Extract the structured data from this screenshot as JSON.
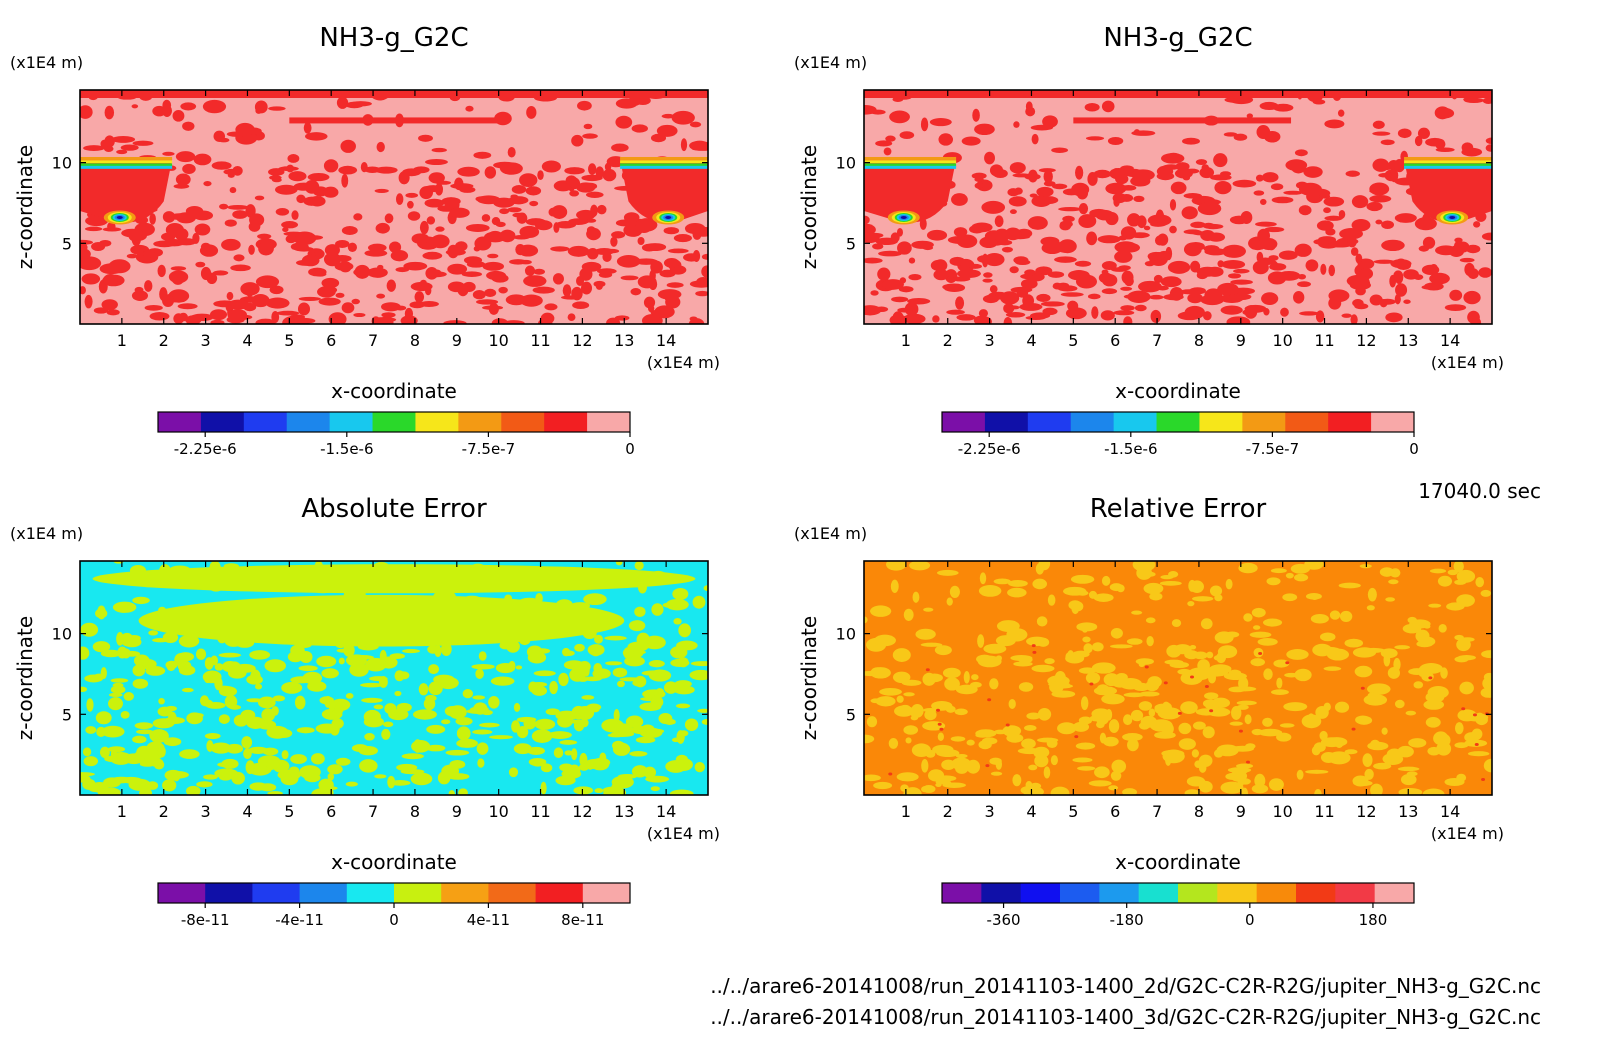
{
  "chart_data": [
    {
      "type": "heatmap",
      "title": "NH3-g_G2C",
      "xlabel": "x-coordinate",
      "ylabel": "z-coordinate",
      "xunit": "(x1E4 m)",
      "yunit": "(x1E4 m)",
      "xlim": [
        0,
        15
      ],
      "ylim": [
        0,
        14.5
      ],
      "xticks": [
        "1",
        "2",
        "3",
        "4",
        "5",
        "6",
        "7",
        "8",
        "9",
        "10",
        "11",
        "12",
        "13",
        "14"
      ],
      "yticks": [
        "5",
        "10"
      ],
      "colorbar": {
        "min": -2.5e-06,
        "max": 0,
        "colors": [
          "#7b0fa8",
          "#1010a8",
          "#1f3cf0",
          "#1c86ec",
          "#18c8ee",
          "#2ad82a",
          "#f6e61a",
          "#f39a14",
          "#f25a16",
          "#f21f22",
          "#f8a8a8"
        ],
        "tick_values": [
          -2.25e-06,
          -1.5e-06,
          -7.5e-07,
          0
        ],
        "tick_labels": [
          "-2.25e-6",
          "-1.5e-6",
          "-7.5e-7",
          "0"
        ]
      },
      "field": {
        "base": "#f8a8a8",
        "patch": "#f22a2a",
        "style": "nh3"
      }
    },
    {
      "type": "heatmap",
      "title": "NH3-g_G2C",
      "xlabel": "x-coordinate",
      "ylabel": "z-coordinate",
      "xunit": "(x1E4 m)",
      "yunit": "(x1E4 m)",
      "xlim": [
        0,
        15
      ],
      "ylim": [
        0,
        14.5
      ],
      "xticks": [
        "1",
        "2",
        "3",
        "4",
        "5",
        "6",
        "7",
        "8",
        "9",
        "10",
        "11",
        "12",
        "13",
        "14"
      ],
      "yticks": [
        "5",
        "10"
      ],
      "colorbar": {
        "min": -2.5e-06,
        "max": 0,
        "colors": [
          "#7b0fa8",
          "#1010a8",
          "#1f3cf0",
          "#1c86ec",
          "#18c8ee",
          "#2ad82a",
          "#f6e61a",
          "#f39a14",
          "#f25a16",
          "#f21f22",
          "#f8a8a8"
        ],
        "tick_values": [
          -2.25e-06,
          -1.5e-06,
          -7.5e-07,
          0
        ],
        "tick_labels": [
          "-2.25e-6",
          "-1.5e-6",
          "-7.5e-7",
          "0"
        ]
      },
      "field": {
        "base": "#f8a8a8",
        "patch": "#f22a2a",
        "style": "nh3"
      }
    },
    {
      "type": "heatmap",
      "title": "Absolute Error",
      "xlabel": "x-coordinate",
      "ylabel": "z-coordinate",
      "xunit": "(x1E4 m)",
      "yunit": "(x1E4 m)",
      "xlim": [
        0,
        15
      ],
      "ylim": [
        0,
        14.5
      ],
      "xticks": [
        "1",
        "2",
        "3",
        "4",
        "5",
        "6",
        "7",
        "8",
        "9",
        "10",
        "11",
        "12",
        "13",
        "14"
      ],
      "yticks": [
        "5",
        "10"
      ],
      "colorbar": {
        "min": -1e-10,
        "max": 1e-10,
        "colors": [
          "#7b0fa8",
          "#1010a8",
          "#1f3cf0",
          "#1c86ec",
          "#18e8f0",
          "#c8f010",
          "#f6a014",
          "#f26a18",
          "#f21f22",
          "#f8a8a8"
        ],
        "tick_values": [
          -8e-11,
          -4e-11,
          0,
          4e-11,
          8e-11
        ],
        "tick_labels": [
          "-8e-11",
          "-4e-11",
          "0",
          "4e-11",
          "8e-11"
        ]
      },
      "field": {
        "base": "#18e8f0",
        "patch": "#cbf20c",
        "style": "err"
      }
    },
    {
      "type": "heatmap",
      "title": "Relative Error",
      "xlabel": "x-coordinate",
      "ylabel": "z-coordinate",
      "xunit": "(x1E4 m)",
      "yunit": "(x1E4 m)",
      "xlim": [
        0,
        15
      ],
      "ylim": [
        0,
        14.5
      ],
      "xticks": [
        "1",
        "2",
        "3",
        "4",
        "5",
        "6",
        "7",
        "8",
        "9",
        "10",
        "11",
        "12",
        "13",
        "14"
      ],
      "yticks": [
        "5",
        "10"
      ],
      "colorbar": {
        "min": -450,
        "max": 240,
        "colors": [
          "#7b0fa8",
          "#1010a8",
          "#1010f0",
          "#1c5cf0",
          "#1c9aee",
          "#18e0d0",
          "#b4e61e",
          "#f8c818",
          "#f88a0a",
          "#f23a16",
          "#f23a46",
          "#f8a8a8"
        ],
        "tick_values": [
          -360,
          -180,
          0,
          180
        ],
        "tick_labels": [
          "-360",
          "-180",
          "0",
          "180"
        ]
      },
      "field": {
        "base": "#fa8808",
        "patch": "#f8c818",
        "style": "rel"
      }
    }
  ],
  "time_label": "17040.0 sec",
  "file_paths": [
    "../../arare6-20141008/run_20141103-1400_2d/G2C-C2R-R2G/jupiter_NH3-g_G2C.nc",
    "../../arare6-20141008/run_20141103-1400_3d/G2C-C2R-R2G/jupiter_NH3-g_G2C.nc"
  ]
}
